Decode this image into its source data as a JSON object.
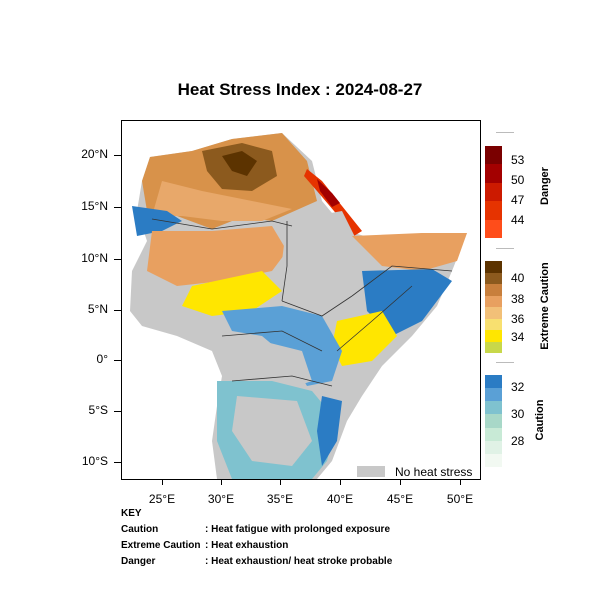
{
  "title": "Heat Stress Index : 2024-08-27",
  "axes": {
    "lat_labels": [
      "20°N",
      "15°N",
      "10°N",
      "5°N",
      "0°",
      "5°S",
      "10°S"
    ],
    "lon_labels": [
      "25°E",
      "30°E",
      "35°E",
      "40°E",
      "45°E",
      "50°E"
    ]
  },
  "legend": {
    "no_stress_label": "No heat stress",
    "no_stress_color": "#c8c8c8"
  },
  "colorbars": {
    "danger": {
      "title": "Danger",
      "labels": [
        "53",
        "50",
        "47",
        "44"
      ],
      "colors": [
        "#7a0000",
        "#a30000",
        "#cc1a00",
        "#e63300",
        "#ff4d1a"
      ]
    },
    "extreme_caution": {
      "title": "Extreme Caution",
      "labels": [
        "40",
        "38",
        "36",
        "34"
      ],
      "colors": [
        "#5c3300",
        "#8c5a1e",
        "#c87f3c",
        "#e8a060",
        "#f2c078",
        "#f8e070",
        "#ffe600",
        "#c8d84a"
      ]
    },
    "caution": {
      "title": "Caution",
      "labels": [
        "32",
        "30",
        "28"
      ],
      "colors": [
        "#2b7cc4",
        "#5aa0d6",
        "#7fc2cf",
        "#a8d8c8",
        "#c8ead6",
        "#e0f2e6",
        "#f2f9f2"
      ]
    }
  },
  "key": {
    "heading": "KEY",
    "rows": [
      {
        "term": "Caution",
        "desc": ": Heat fatigue with prolonged exposure"
      },
      {
        "term": "Extreme Caution",
        "desc": ": Heat exhaustion"
      },
      {
        "term": "Danger",
        "desc": ": Heat exhaustion/ heat stroke probable"
      }
    ]
  }
}
